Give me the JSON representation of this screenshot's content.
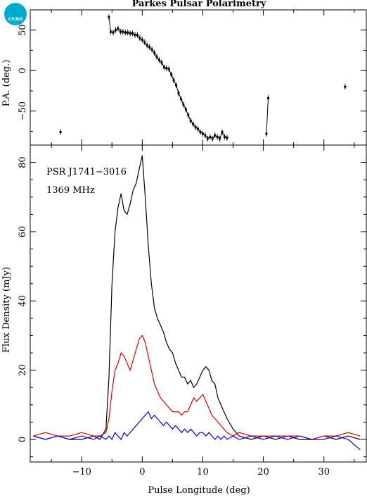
{
  "chart_data": [
    {
      "type": "scatter",
      "title": "Parkes Pulsar Polarimetry",
      "ylabel": "P.A. (deg.)",
      "xlim": [
        -18.5,
        37
      ],
      "ylim": [
        -92,
        75
      ],
      "yticks": [
        -50,
        0,
        50
      ],
      "x": [
        -13.5,
        -5.5,
        -5.2,
        -4.8,
        -4.4,
        -4.0,
        -3.6,
        -3.2,
        -2.8,
        -2.4,
        -2.0,
        -1.6,
        -1.2,
        -0.8,
        -0.4,
        0.0,
        0.4,
        0.8,
        1.2,
        1.6,
        2.0,
        2.4,
        2.8,
        3.2,
        3.6,
        4.0,
        4.4,
        4.8,
        5.2,
        5.6,
        6.0,
        6.4,
        6.8,
        7.2,
        7.6,
        8.0,
        8.4,
        8.8,
        9.2,
        9.6,
        10.0,
        10.4,
        10.8,
        11.2,
        11.6,
        12.0,
        12.4,
        12.8,
        13.2,
        13.6,
        14.0,
        20.5,
        20.8,
        33.5
      ],
      "values": [
        -76,
        66,
        48,
        47,
        50,
        52,
        48,
        48,
        47,
        47,
        46,
        46,
        44,
        44,
        40,
        38,
        35,
        31,
        29,
        26,
        22,
        17,
        13,
        10,
        4,
        3,
        2,
        -5,
        -12,
        -18,
        -28,
        -35,
        -42,
        -48,
        -55,
        -62,
        -66,
        -70,
        -72,
        -76,
        -78,
        -80,
        -84,
        -82,
        -84,
        -80,
        -82,
        -84,
        -76,
        -82,
        -83,
        -78,
        -34,
        -20
      ],
      "color": "#000000",
      "connected_until_x": 14.0
    },
    {
      "type": "line",
      "ylabel": "Flux Density (mJy)",
      "xlabel": "Pulse Longitude (deg)",
      "xlim": [
        -18.5,
        37
      ],
      "ylim": [
        -6.5,
        85
      ],
      "xticks": [
        -10,
        0,
        10,
        20,
        30
      ],
      "yticks": [
        0,
        20,
        40,
        60,
        80
      ],
      "annotations": [
        "PSR J1741−3016",
        "1369 MHz"
      ],
      "x": [
        -18,
        -16,
        -14,
        -12,
        -10,
        -8,
        -7,
        -6,
        -5.5,
        -5,
        -4.5,
        -4,
        -3.5,
        -3,
        -2.5,
        -2,
        -1.5,
        -1,
        -0.5,
        0,
        0.5,
        1,
        1.5,
        2,
        2.5,
        3,
        3.5,
        4,
        4.5,
        5,
        5.5,
        6,
        6.5,
        7,
        7.5,
        8,
        8.5,
        9,
        9.5,
        10,
        10.5,
        11,
        11.5,
        12,
        12.5,
        13,
        13.5,
        14,
        15,
        16,
        18,
        20,
        22,
        24,
        26,
        28,
        30,
        32,
        34,
        36
      ],
      "series": [
        {
          "values": [
            1,
            0,
            1,
            0,
            0,
            1,
            0,
            3,
            18,
            45,
            60,
            67,
            71,
            66,
            65,
            68,
            72,
            74,
            78,
            82,
            70,
            56,
            45,
            38,
            35,
            33,
            31,
            28,
            26,
            25,
            22,
            20,
            18,
            18,
            16,
            17,
            15,
            16,
            18,
            20,
            21,
            20,
            17,
            16,
            12,
            10,
            8,
            6,
            3,
            1,
            0,
            1,
            0,
            1,
            0,
            0,
            1,
            0,
            1,
            0
          ],
          "color": "#000000"
        },
        {
          "values": [
            1,
            2,
            1,
            1,
            2,
            1,
            1,
            2,
            6,
            14,
            20,
            22,
            25,
            24,
            22,
            20,
            23,
            26,
            29,
            30,
            28,
            24,
            20,
            16,
            14,
            12,
            11,
            10,
            9,
            8,
            8,
            8,
            7,
            8,
            8,
            10,
            12,
            11,
            12,
            13,
            11,
            9,
            7,
            6,
            5,
            4,
            3,
            2,
            1,
            2,
            1,
            1,
            1,
            1,
            1,
            0,
            1,
            1,
            2,
            1
          ],
          "color": "#e00000"
        },
        {
          "values": [
            1,
            0,
            1,
            0,
            1,
            0,
            1,
            0,
            1,
            0,
            2,
            1,
            0,
            2,
            1,
            2,
            3,
            4,
            5,
            6,
            7,
            8,
            6,
            7,
            6,
            5,
            4,
            5,
            4,
            3,
            4,
            3,
            2,
            3,
            2,
            3,
            2,
            1,
            2,
            2,
            1,
            2,
            1,
            0,
            1,
            0,
            1,
            0,
            1,
            0,
            1,
            0,
            1,
            0,
            1,
            0,
            0,
            1,
            0,
            -3
          ],
          "color": "#0000e0"
        }
      ]
    }
  ],
  "logo": {
    "text": "CSIRO",
    "color": "#00a9ce"
  }
}
